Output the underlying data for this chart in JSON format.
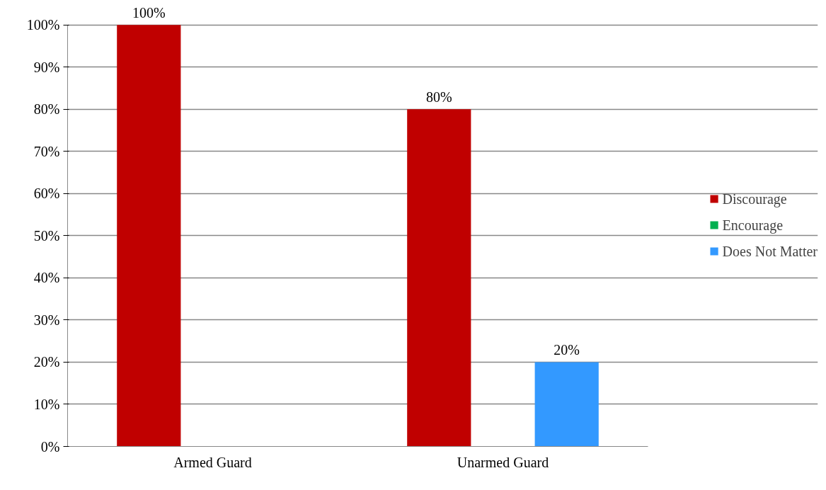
{
  "chart_data": {
    "type": "bar",
    "categories": [
      "Armed Guard",
      "Unarmed Guard"
    ],
    "series": [
      {
        "name": "Discourage",
        "color": "#c00000",
        "values": [
          100,
          80
        ],
        "value_labels": [
          "100%",
          "80%"
        ]
      },
      {
        "name": "Encourage",
        "color": "#00b050",
        "values": [
          0,
          0
        ],
        "value_labels": [
          null,
          null
        ]
      },
      {
        "name": "Does Not Matter",
        "color": "#3399ff",
        "values": [
          0,
          20
        ],
        "value_labels": [
          null,
          "20%"
        ]
      }
    ],
    "ylim": [
      0,
      100
    ],
    "yticks": [
      {
        "value": 0,
        "label": "0%"
      },
      {
        "value": 10,
        "label": "10%"
      },
      {
        "value": 20,
        "label": "20%"
      },
      {
        "value": 30,
        "label": "30%"
      },
      {
        "value": 40,
        "label": "40%"
      },
      {
        "value": 50,
        "label": "50%"
      },
      {
        "value": 60,
        "label": "60%"
      },
      {
        "value": 70,
        "label": "70%"
      },
      {
        "value": 80,
        "label": "80%"
      },
      {
        "value": 90,
        "label": "90%"
      },
      {
        "value": 100,
        "label": "100%"
      }
    ],
    "grid": "y",
    "legend": "right"
  }
}
